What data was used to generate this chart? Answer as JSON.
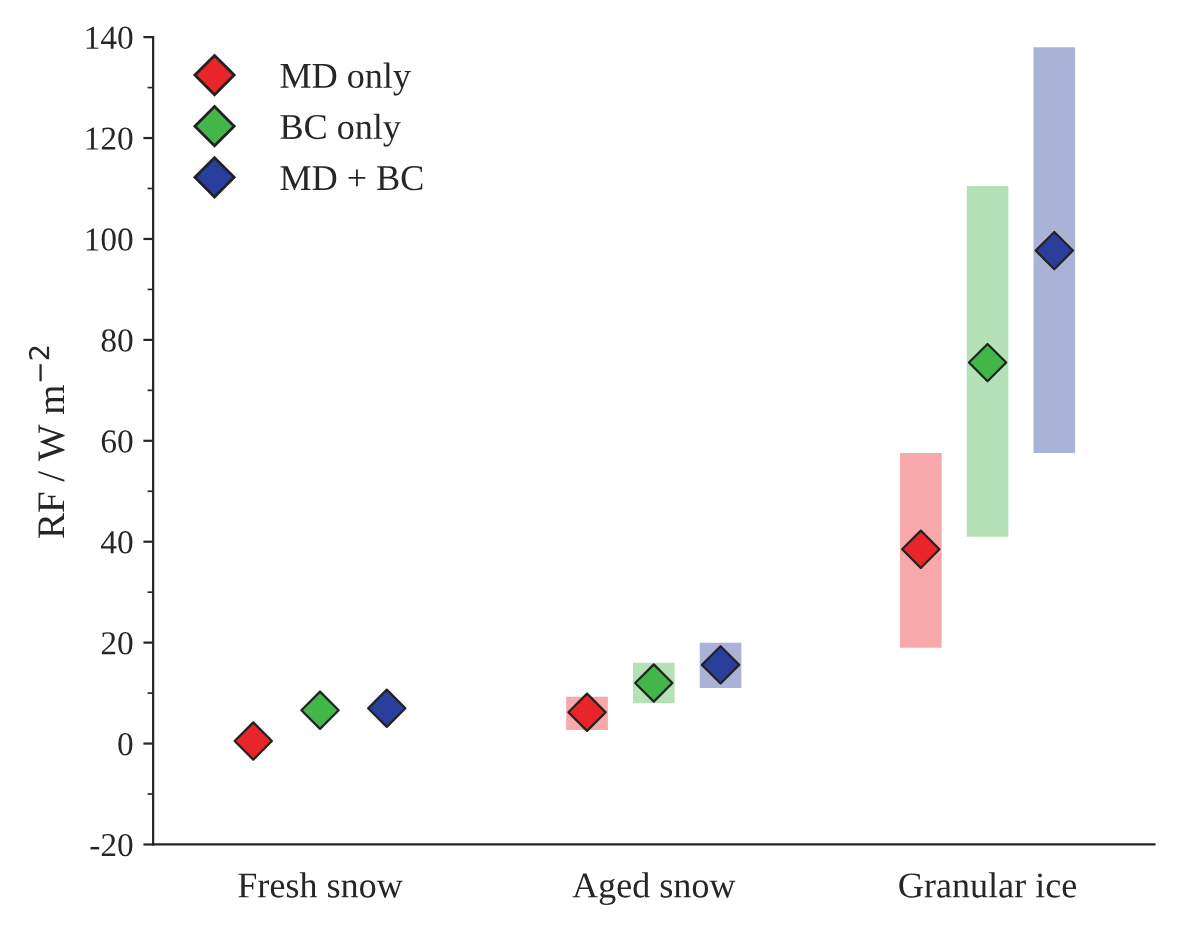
{
  "chart_data": {
    "type": "scatter",
    "ylabel": "RF / W m$^{−2}$",
    "categories": [
      "Fresh snow",
      "Aged snow",
      "Granular ice"
    ],
    "series": [
      {
        "name": "MD only",
        "color": "#e8262a",
        "values": [
          0.5,
          6.2,
          38.5
        ],
        "errors": [
          null,
          [
            2.7,
            9.3
          ],
          [
            19,
            57.6
          ]
        ]
      },
      {
        "name": "BC only",
        "color": "#43b649",
        "values": [
          6.6,
          12,
          75.5
        ],
        "errors": [
          null,
          [
            8,
            16
          ],
          [
            41,
            110.5
          ]
        ]
      },
      {
        "name": "MD + BC",
        "color": "#2a3f9c",
        "values": [
          7,
          15.6,
          97.7
        ],
        "errors": [
          null,
          [
            11,
            20
          ],
          [
            57.6,
            138
          ]
        ]
      }
    ],
    "ylim": [
      -20,
      140
    ],
    "yticks": [
      -20,
      0,
      20,
      40,
      60,
      80,
      100,
      120,
      140
    ],
    "marker": "diamond",
    "legend": "top left",
    "grid": false
  }
}
